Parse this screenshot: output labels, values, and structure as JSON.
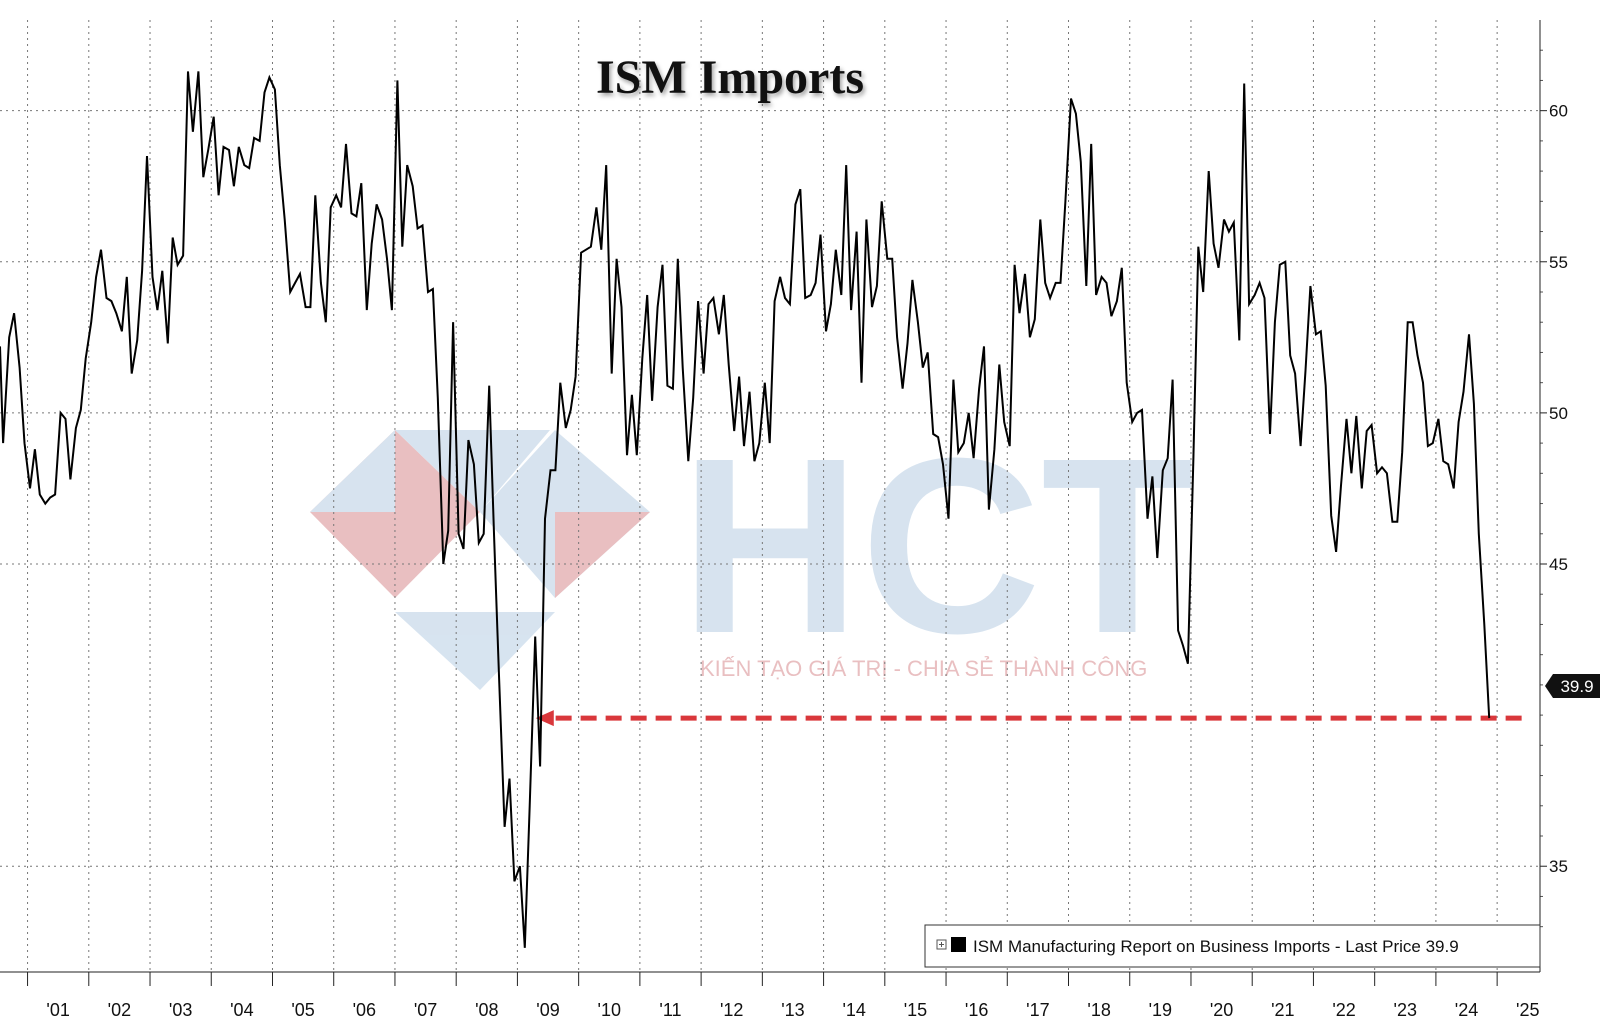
{
  "chart_data": {
    "type": "line",
    "title": "ISM Imports",
    "xlabel": "",
    "ylabel": "",
    "x_tick_labels": [
      "'01",
      "'02",
      "'03",
      "'04",
      "'05",
      "'06",
      "'07",
      "'08",
      "'09",
      "'10",
      "'11",
      "'12",
      "'13",
      "'14",
      "'15",
      "'16",
      "'17",
      "'18",
      "'19",
      "'20",
      "'21",
      "'22",
      "'23",
      "'24",
      "'25"
    ],
    "y_ticks": [
      35,
      45,
      50,
      55,
      60
    ],
    "ylim": [
      31.5,
      63
    ],
    "xlim": [
      2000.55,
      2025.7
    ],
    "grid": true,
    "legend": {
      "placement": "bottom-right",
      "text": "ISM Manufacturing Report on Business Imports - Last Price 39.9"
    },
    "last_price_label": "39.9",
    "last_price": 39.9,
    "reference_arrow": {
      "from_x": 2025.4,
      "to_x": 2009.3,
      "y": 39.9,
      "color": "#d9373b"
    },
    "series": [
      {
        "color": "#000000",
        "points": [
          [
            2000.55,
            52.2
          ],
          [
            2000.6,
            49.0
          ],
          [
            2000.7,
            52.5
          ],
          [
            2000.78,
            53.3
          ],
          [
            2000.87,
            51.5
          ],
          [
            2000.95,
            49.0
          ],
          [
            2001.04,
            47.5
          ],
          [
            2001.12,
            48.8
          ],
          [
            2001.2,
            47.3
          ],
          [
            2001.29,
            47.0
          ],
          [
            2001.37,
            47.2
          ],
          [
            2001.45,
            47.3
          ],
          [
            2001.54,
            50.0
          ],
          [
            2001.62,
            49.8
          ],
          [
            2001.7,
            47.8
          ],
          [
            2001.79,
            49.5
          ],
          [
            2001.87,
            50.1
          ],
          [
            2001.95,
            51.8
          ],
          [
            2002.04,
            53.0
          ],
          [
            2002.12,
            54.5
          ],
          [
            2002.2,
            55.4
          ],
          [
            2002.29,
            53.8
          ],
          [
            2002.37,
            53.7
          ],
          [
            2002.45,
            53.3
          ],
          [
            2002.54,
            52.7
          ],
          [
            2002.62,
            54.5
          ],
          [
            2002.7,
            51.3
          ],
          [
            2002.79,
            52.4
          ],
          [
            2002.87,
            54.7
          ],
          [
            2002.95,
            58.5
          ],
          [
            2003.04,
            54.5
          ],
          [
            2003.12,
            53.4
          ],
          [
            2003.2,
            54.7
          ],
          [
            2003.29,
            52.3
          ],
          [
            2003.37,
            55.8
          ],
          [
            2003.45,
            54.9
          ],
          [
            2003.54,
            55.2
          ],
          [
            2003.62,
            61.3
          ],
          [
            2003.7,
            59.3
          ],
          [
            2003.79,
            61.3
          ],
          [
            2003.87,
            57.8
          ],
          [
            2003.95,
            58.7
          ],
          [
            2004.04,
            59.8
          ],
          [
            2004.12,
            57.2
          ],
          [
            2004.2,
            58.8
          ],
          [
            2004.29,
            58.7
          ],
          [
            2004.37,
            57.5
          ],
          [
            2004.45,
            58.8
          ],
          [
            2004.54,
            58.2
          ],
          [
            2004.62,
            58.1
          ],
          [
            2004.7,
            59.1
          ],
          [
            2004.79,
            59.0
          ],
          [
            2004.87,
            60.6
          ],
          [
            2004.95,
            61.1
          ],
          [
            2005.04,
            60.7
          ],
          [
            2005.12,
            58.2
          ],
          [
            2005.2,
            56.4
          ],
          [
            2005.29,
            54.0
          ],
          [
            2005.37,
            54.3
          ],
          [
            2005.45,
            54.6
          ],
          [
            2005.54,
            53.5
          ],
          [
            2005.62,
            53.5
          ],
          [
            2005.7,
            57.2
          ],
          [
            2005.79,
            54.3
          ],
          [
            2005.87,
            53.0
          ],
          [
            2005.95,
            56.8
          ],
          [
            2006.04,
            57.2
          ],
          [
            2006.12,
            56.8
          ],
          [
            2006.2,
            58.9
          ],
          [
            2006.29,
            56.6
          ],
          [
            2006.37,
            56.5
          ],
          [
            2006.45,
            57.6
          ],
          [
            2006.54,
            53.4
          ],
          [
            2006.62,
            55.6
          ],
          [
            2006.7,
            56.9
          ],
          [
            2006.79,
            56.4
          ],
          [
            2006.87,
            55.1
          ],
          [
            2006.95,
            53.4
          ],
          [
            2007.04,
            61.0
          ],
          [
            2007.12,
            55.5
          ],
          [
            2007.2,
            58.2
          ],
          [
            2007.29,
            57.5
          ],
          [
            2007.37,
            56.1
          ],
          [
            2007.45,
            56.2
          ],
          [
            2007.54,
            54.0
          ],
          [
            2007.62,
            54.1
          ],
          [
            2007.7,
            50.5
          ],
          [
            2007.79,
            45.0
          ],
          [
            2007.87,
            46.1
          ],
          [
            2007.95,
            53.0
          ],
          [
            2008.04,
            46.0
          ],
          [
            2008.12,
            45.5
          ],
          [
            2008.2,
            49.1
          ],
          [
            2008.29,
            48.3
          ],
          [
            2008.37,
            45.7
          ],
          [
            2008.45,
            46.0
          ],
          [
            2008.54,
            50.9
          ],
          [
            2008.62,
            45.9
          ],
          [
            2008.7,
            41.3
          ],
          [
            2008.79,
            36.3
          ],
          [
            2008.87,
            37.9
          ],
          [
            2008.95,
            34.5
          ],
          [
            2009.04,
            35.0
          ],
          [
            2009.12,
            32.3
          ],
          [
            2009.2,
            37.0
          ],
          [
            2009.29,
            42.6
          ],
          [
            2009.37,
            38.3
          ],
          [
            2009.45,
            46.5
          ],
          [
            2009.54,
            48.1
          ],
          [
            2009.62,
            48.1
          ],
          [
            2009.7,
            51.0
          ],
          [
            2009.79,
            49.5
          ],
          [
            2009.87,
            50.1
          ],
          [
            2009.95,
            51.2
          ],
          [
            2010.04,
            55.3
          ],
          [
            2010.12,
            55.4
          ],
          [
            2010.2,
            55.5
          ],
          [
            2010.29,
            56.8
          ],
          [
            2010.37,
            55.4
          ],
          [
            2010.45,
            58.2
          ],
          [
            2010.54,
            51.3
          ],
          [
            2010.62,
            55.1
          ],
          [
            2010.7,
            53.5
          ],
          [
            2010.79,
            48.6
          ],
          [
            2010.87,
            50.6
          ],
          [
            2010.95,
            48.6
          ],
          [
            2011.04,
            51.8
          ],
          [
            2011.12,
            53.9
          ],
          [
            2011.2,
            50.4
          ],
          [
            2011.29,
            53.5
          ],
          [
            2011.37,
            54.9
          ],
          [
            2011.45,
            50.9
          ],
          [
            2011.54,
            50.8
          ],
          [
            2011.62,
            55.1
          ],
          [
            2011.7,
            51.5
          ],
          [
            2011.79,
            48.4
          ],
          [
            2011.87,
            50.5
          ],
          [
            2011.95,
            53.7
          ],
          [
            2012.04,
            51.3
          ],
          [
            2012.12,
            53.6
          ],
          [
            2012.2,
            53.8
          ],
          [
            2012.29,
            52.6
          ],
          [
            2012.37,
            53.9
          ],
          [
            2012.45,
            51.6
          ],
          [
            2012.54,
            49.4
          ],
          [
            2012.62,
            51.2
          ],
          [
            2012.7,
            48.9
          ],
          [
            2012.79,
            50.7
          ],
          [
            2012.87,
            48.4
          ],
          [
            2012.95,
            49.0
          ],
          [
            2013.04,
            51.0
          ],
          [
            2013.12,
            49.0
          ],
          [
            2013.2,
            53.7
          ],
          [
            2013.29,
            54.5
          ],
          [
            2013.37,
            53.8
          ],
          [
            2013.45,
            53.6
          ],
          [
            2013.54,
            56.9
          ],
          [
            2013.62,
            57.4
          ],
          [
            2013.7,
            53.8
          ],
          [
            2013.79,
            53.9
          ],
          [
            2013.87,
            54.3
          ],
          [
            2013.95,
            55.9
          ],
          [
            2014.04,
            52.7
          ],
          [
            2014.12,
            53.6
          ],
          [
            2014.2,
            55.4
          ],
          [
            2014.29,
            53.9
          ],
          [
            2014.37,
            58.2
          ],
          [
            2014.45,
            53.4
          ],
          [
            2014.54,
            56.0
          ],
          [
            2014.62,
            51.0
          ],
          [
            2014.7,
            56.4
          ],
          [
            2014.79,
            53.5
          ],
          [
            2014.87,
            54.2
          ],
          [
            2014.95,
            57.0
          ],
          [
            2015.04,
            55.1
          ],
          [
            2015.12,
            55.1
          ],
          [
            2015.2,
            52.5
          ],
          [
            2015.29,
            50.8
          ],
          [
            2015.37,
            52.3
          ],
          [
            2015.45,
            54.4
          ],
          [
            2015.54,
            53.0
          ],
          [
            2015.62,
            51.5
          ],
          [
            2015.7,
            52.0
          ],
          [
            2015.79,
            49.3
          ],
          [
            2015.87,
            49.2
          ],
          [
            2015.95,
            48.3
          ],
          [
            2016.04,
            46.5
          ],
          [
            2016.12,
            51.1
          ],
          [
            2016.2,
            48.7
          ],
          [
            2016.29,
            49.0
          ],
          [
            2016.37,
            50.0
          ],
          [
            2016.45,
            48.5
          ],
          [
            2016.54,
            50.8
          ],
          [
            2016.62,
            52.2
          ],
          [
            2016.7,
            46.8
          ],
          [
            2016.79,
            48.8
          ],
          [
            2016.87,
            51.6
          ],
          [
            2016.95,
            49.7
          ],
          [
            2017.04,
            48.9
          ],
          [
            2017.12,
            54.9
          ],
          [
            2017.2,
            53.3
          ],
          [
            2017.29,
            54.6
          ],
          [
            2017.37,
            52.5
          ],
          [
            2017.45,
            53.1
          ],
          [
            2017.54,
            56.4
          ],
          [
            2017.62,
            54.3
          ],
          [
            2017.7,
            53.8
          ],
          [
            2017.79,
            54.3
          ],
          [
            2017.87,
            54.3
          ],
          [
            2017.95,
            57.0
          ],
          [
            2018.04,
            60.4
          ],
          [
            2018.12,
            59.9
          ],
          [
            2018.2,
            58.3
          ],
          [
            2018.29,
            54.2
          ],
          [
            2018.37,
            58.9
          ],
          [
            2018.45,
            53.9
          ],
          [
            2018.54,
            54.5
          ],
          [
            2018.62,
            54.3
          ],
          [
            2018.7,
            53.2
          ],
          [
            2018.79,
            53.7
          ],
          [
            2018.87,
            54.8
          ],
          [
            2018.95,
            51.0
          ],
          [
            2019.04,
            49.7
          ],
          [
            2019.12,
            50.0
          ],
          [
            2019.2,
            50.1
          ],
          [
            2019.29,
            46.5
          ],
          [
            2019.37,
            47.9
          ],
          [
            2019.45,
            45.2
          ],
          [
            2019.54,
            48.1
          ],
          [
            2019.62,
            48.5
          ],
          [
            2019.7,
            51.1
          ],
          [
            2019.79,
            42.8
          ],
          [
            2019.87,
            42.3
          ],
          [
            2019.95,
            41.7
          ],
          [
            2020.04,
            48.5
          ],
          [
            2020.12,
            55.5
          ],
          [
            2020.2,
            54.0
          ],
          [
            2020.29,
            58.0
          ],
          [
            2020.37,
            55.6
          ],
          [
            2020.45,
            54.8
          ],
          [
            2020.54,
            56.4
          ],
          [
            2020.62,
            56.0
          ],
          [
            2020.7,
            56.3
          ],
          [
            2020.79,
            52.4
          ],
          [
            2020.87,
            60.9
          ],
          [
            2020.95,
            53.6
          ],
          [
            2021.04,
            53.9
          ],
          [
            2021.12,
            54.3
          ],
          [
            2021.2,
            53.8
          ],
          [
            2021.29,
            49.3
          ],
          [
            2021.37,
            53.0
          ],
          [
            2021.45,
            54.9
          ],
          [
            2021.54,
            55.0
          ],
          [
            2021.62,
            51.9
          ],
          [
            2021.7,
            51.3
          ],
          [
            2021.79,
            48.9
          ],
          [
            2021.87,
            51.4
          ],
          [
            2021.95,
            54.2
          ],
          [
            2022.04,
            52.6
          ],
          [
            2022.12,
            52.7
          ],
          [
            2022.2,
            50.9
          ],
          [
            2022.29,
            46.6
          ],
          [
            2022.37,
            45.4
          ],
          [
            2022.45,
            47.6
          ],
          [
            2022.54,
            49.8
          ],
          [
            2022.62,
            48.0
          ],
          [
            2022.7,
            49.9
          ],
          [
            2022.79,
            47.5
          ],
          [
            2022.87,
            49.4
          ],
          [
            2022.95,
            49.6
          ],
          [
            2023.04,
            48.0
          ],
          [
            2023.12,
            48.2
          ],
          [
            2023.2,
            48.0
          ],
          [
            2023.29,
            46.4
          ],
          [
            2023.37,
            46.4
          ],
          [
            2023.45,
            48.7
          ],
          [
            2023.54,
            53.0
          ],
          [
            2023.62,
            53.0
          ],
          [
            2023.7,
            51.9
          ],
          [
            2023.79,
            51.0
          ],
          [
            2023.87,
            48.9
          ],
          [
            2023.95,
            49.0
          ],
          [
            2024.04,
            49.8
          ],
          [
            2024.12,
            48.4
          ],
          [
            2024.2,
            48.3
          ],
          [
            2024.29,
            47.5
          ],
          [
            2024.37,
            49.7
          ],
          [
            2024.45,
            50.7
          ],
          [
            2024.54,
            52.6
          ],
          [
            2024.62,
            50.3
          ],
          [
            2024.7,
            46.0
          ],
          [
            2024.79,
            43.0
          ],
          [
            2024.87,
            39.9
          ]
        ]
      }
    ]
  },
  "watermark": {
    "letters": "HCT",
    "tagline": "KIẾN TẠO GIÁ TRỊ - CHIA SẺ THÀNH CÔNG"
  }
}
